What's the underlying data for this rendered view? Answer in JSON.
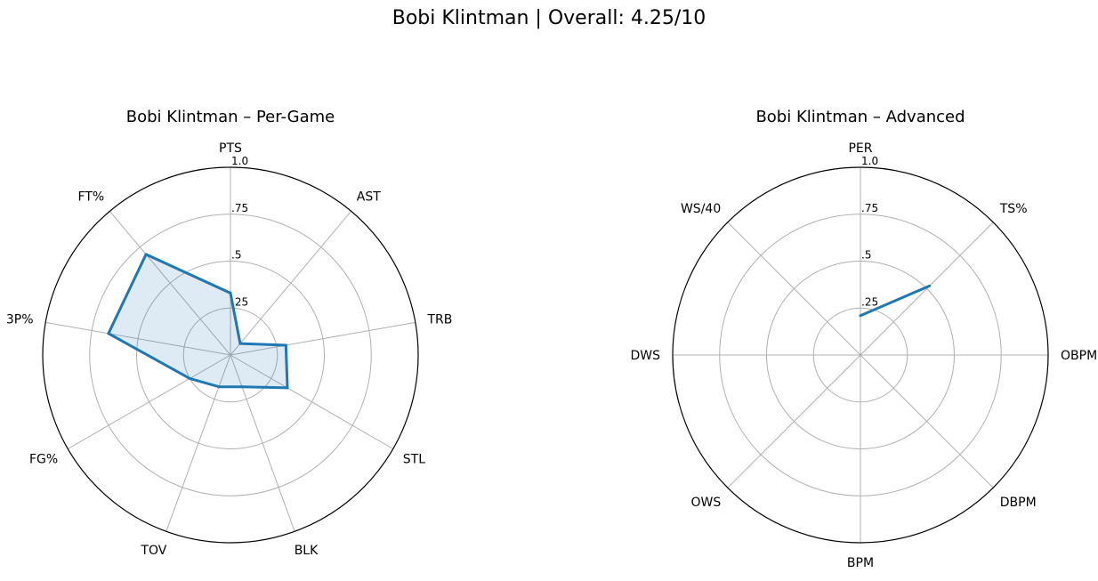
{
  "title": "Bobi Klintman | Overall: 4.25/10",
  "colors": {
    "line": "#1f77b4",
    "fill": "#1f77b4",
    "grid": "#b0b0b0",
    "frame": "#000000"
  },
  "chart_data": [
    {
      "type": "radar",
      "title": "Bobi Klintman – Per-Game",
      "rlim": [
        0,
        1
      ],
      "rticks": [
        0.25,
        0.5,
        0.75,
        1.0
      ],
      "rtick_labels": [
        ".25",
        ".5",
        ".75",
        "1.0"
      ],
      "categories": [
        "PTS",
        "AST",
        "TRB",
        "STL",
        "BLK",
        "TOV",
        "FG%",
        "3P%",
        "FT%"
      ],
      "values": [
        0.33,
        0.08,
        0.3,
        0.35,
        0.18,
        0.18,
        0.25,
        0.66,
        0.7
      ],
      "filled": true,
      "closed": true
    },
    {
      "type": "radar",
      "title": "Bobi Klintman – Advanced",
      "rlim": [
        0,
        1
      ],
      "rticks": [
        0.25,
        0.5,
        0.75,
        1.0
      ],
      "rtick_labels": [
        ".25",
        ".5",
        ".75",
        "1.0"
      ],
      "categories": [
        "PER",
        "TS%",
        "OBPM",
        "DBPM",
        "BPM",
        "OWS",
        "DWS",
        "WS/40"
      ],
      "values": [
        0.21,
        0.52,
        null,
        null,
        null,
        null,
        null,
        null
      ],
      "filled": false,
      "closed": false
    }
  ]
}
